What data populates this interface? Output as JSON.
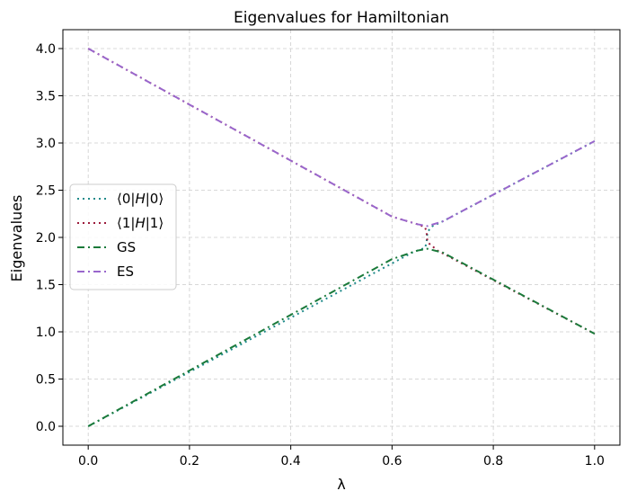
{
  "chart_data": {
    "type": "line",
    "title": "Eigenvalues for Hamiltonian",
    "xlabel": "λ",
    "ylabel": "Eigenvalues",
    "xlim": [
      -0.05,
      1.05
    ],
    "ylim": [
      -0.2,
      4.2
    ],
    "grid": true,
    "legend_position": "center-left",
    "x_ticks": [
      0.0,
      0.2,
      0.4,
      0.6,
      0.8,
      1.0
    ],
    "x_tick_labels": [
      "0.0",
      "0.2",
      "0.4",
      "0.6",
      "0.8",
      "1.0"
    ],
    "y_ticks": [
      0.0,
      0.5,
      1.0,
      1.5,
      2.0,
      2.5,
      3.0,
      3.5,
      4.0
    ],
    "y_tick_labels": [
      "0.0",
      "0.5",
      "1.0",
      "1.5",
      "2.0",
      "2.5",
      "3.0",
      "3.5",
      "4.0"
    ],
    "series": [
      {
        "name": "⟨0|H|0⟩",
        "legend_label": {
          "pre": "⟨0|",
          "italic": "H",
          "post": "|0⟩"
        },
        "color": "#1f8a8a",
        "dash": "dotted",
        "x": [
          0.0,
          0.64,
          0.655,
          0.665,
          0.668,
          0.67,
          0.68,
          0.7,
          1.0
        ],
        "y": [
          0.0,
          1.84,
          1.87,
          1.89,
          1.94,
          2.06,
          2.12,
          2.17,
          3.02
        ]
      },
      {
        "name": "⟨1|H|1⟩",
        "legend_label": {
          "pre": "⟨1|",
          "italic": "H",
          "post": "|1⟩"
        },
        "color": "#9b1b3b",
        "dash": "dotted",
        "x": [
          0.0,
          0.6,
          0.65,
          0.665,
          0.668,
          0.67,
          0.69,
          1.0
        ],
        "y": [
          4.0,
          2.22,
          2.14,
          2.11,
          2.06,
          1.95,
          1.86,
          0.98
        ]
      },
      {
        "name": "GS",
        "color": "#1a7a3a",
        "dash": "dash-dot",
        "x": [
          0.0,
          0.6,
          0.65,
          0.67,
          0.7,
          1.0
        ],
        "y": [
          0.0,
          1.77,
          1.86,
          1.88,
          1.84,
          0.98
        ]
      },
      {
        "name": "ES",
        "color": "#9966cc",
        "dash": "dash-dot",
        "x": [
          0.0,
          0.6,
          0.65,
          0.67,
          0.7,
          1.0
        ],
        "y": [
          4.0,
          2.22,
          2.14,
          2.12,
          2.17,
          3.02
        ]
      }
    ]
  }
}
